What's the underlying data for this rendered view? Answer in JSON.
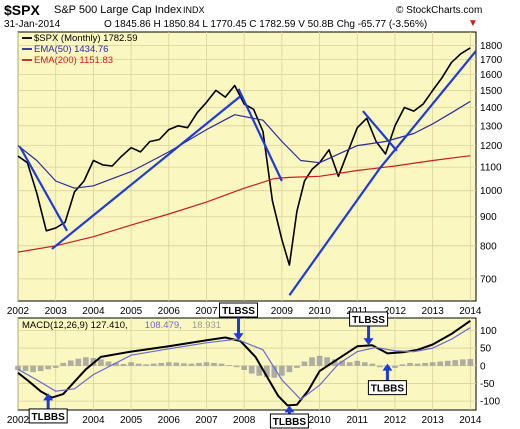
{
  "header": {
    "symbol": "$SPX",
    "name": "S&P 500 Large Cap Index",
    "exchange": "INDX",
    "watermark": "© StockCharts.com",
    "date": "31-Jan-2014",
    "quote": "O 1845.86  H 1850.84  L 1770.45  C 1782.59  V 50.8B  Chg -65.77 (-3.56%)",
    "change_marker": "▼"
  },
  "colors": {
    "plot_bg": "#fbf7c0",
    "grid": "#d9d39a",
    "price": "#000000",
    "ema50": "#2a2a9e",
    "ema200": "#c81e1e",
    "trendline": "#1f3bd6",
    "macd": "#000000",
    "signal": "#6a6ad0",
    "histogram": "#9a9a9a",
    "arrow": "#1f3bd6"
  },
  "chart_data": [
    {
      "type": "line",
      "panel": "price",
      "legend": [
        {
          "name": "$SPX (Monthly) 1782.59",
          "color": "#000000"
        },
        {
          "name": "EMA(50) 1434.76",
          "color": "#2a2a9e"
        },
        {
          "name": "EMA(200) 1151.83",
          "color": "#c81e1e"
        }
      ],
      "scale": "log",
      "ylim": [
        640,
        1900
      ],
      "yticks": [
        700,
        800,
        900,
        1000,
        1100,
        1200,
        1300,
        1400,
        1500,
        1600,
        1700,
        1800
      ],
      "xlim": [
        2002.0,
        2014.15
      ],
      "xticks": [
        "2002",
        "2003",
        "2004",
        "2005",
        "2006",
        "2007",
        "2008",
        "2009",
        "2010",
        "2011",
        "2012",
        "2013",
        "2014"
      ],
      "series": [
        {
          "key": "price",
          "x": [
            2002.0,
            2002.25,
            2002.5,
            2002.75,
            2003.0,
            2003.25,
            2003.5,
            2003.75,
            2004.0,
            2004.25,
            2004.5,
            2004.75,
            2005.0,
            2005.25,
            2005.5,
            2005.75,
            2006.0,
            2006.25,
            2006.5,
            2006.75,
            2007.0,
            2007.25,
            2007.5,
            2007.75,
            2008.0,
            2008.25,
            2008.5,
            2008.75,
            2009.0,
            2009.2,
            2009.4,
            2009.6,
            2009.8,
            2010.0,
            2010.25,
            2010.5,
            2010.75,
            2011.0,
            2011.25,
            2011.5,
            2011.75,
            2012.0,
            2012.25,
            2012.5,
            2012.75,
            2013.0,
            2013.25,
            2013.5,
            2013.75,
            2014.0
          ],
          "values": [
            1150,
            1120,
            990,
            850,
            860,
            880,
            995,
            1040,
            1130,
            1110,
            1105,
            1150,
            1190,
            1170,
            1220,
            1230,
            1280,
            1300,
            1290,
            1370,
            1430,
            1500,
            1460,
            1530,
            1420,
            1390,
            1270,
            960,
            820,
            740,
            920,
            1040,
            1090,
            1120,
            1180,
            1060,
            1170,
            1290,
            1340,
            1220,
            1160,
            1300,
            1400,
            1380,
            1420,
            1500,
            1580,
            1680,
            1740,
            1782
          ]
        },
        {
          "key": "ema50",
          "x": [
            2002.0,
            2002.5,
            2003.0,
            2003.5,
            2004.0,
            2005.0,
            2006.0,
            2007.0,
            2007.75,
            2008.5,
            2009.0,
            2009.5,
            2010.0,
            2011.0,
            2011.75,
            2012.5,
            2013.0,
            2013.5,
            2014.0
          ],
          "values": [
            1200,
            1130,
            1040,
            1010,
            1020,
            1080,
            1170,
            1280,
            1360,
            1330,
            1220,
            1130,
            1120,
            1200,
            1220,
            1260,
            1310,
            1370,
            1435
          ]
        },
        {
          "key": "ema200",
          "x": [
            2002.0,
            2003.0,
            2004.0,
            2005.0,
            2006.0,
            2007.0,
            2008.0,
            2008.8,
            2009.2,
            2010.0,
            2011.0,
            2012.0,
            2013.0,
            2014.0
          ],
          "values": [
            780,
            800,
            830,
            870,
            910,
            955,
            1010,
            1050,
            1055,
            1060,
            1085,
            1105,
            1130,
            1152
          ]
        }
      ],
      "trendlines": [
        {
          "from": [
            2002.05,
            1195
          ],
          "to": [
            2003.3,
            850
          ]
        },
        {
          "from": [
            2002.9,
            790
          ],
          "to": [
            2007.9,
            1465
          ]
        },
        {
          "from": [
            2007.85,
            1510
          ],
          "to": [
            2009.0,
            1040
          ]
        },
        {
          "from": [
            2009.2,
            655
          ],
          "to": [
            2011.6,
            1095
          ]
        },
        {
          "from": [
            2011.6,
            1095
          ],
          "to": [
            2014.15,
            1760
          ]
        },
        {
          "from": [
            2011.15,
            1380
          ],
          "to": [
            2012.05,
            1175
          ]
        }
      ]
    },
    {
      "type": "line",
      "panel": "macd",
      "legend": [
        {
          "name": "MACD(12,26,9) 127.410,",
          "color": "#000000"
        },
        {
          "name": "108.479,",
          "color": "#6a6ad0"
        },
        {
          "name": "18.931",
          "color": "#9a9a9a"
        }
      ],
      "ylim": [
        -125,
        135
      ],
      "yticks": [
        -100,
        -50,
        0,
        50,
        100
      ],
      "xlim": [
        2002.0,
        2014.15
      ],
      "xticks": [
        "2002",
        "2003",
        "2004",
        "2005",
        "2006",
        "2007",
        "2008",
        "2009",
        "2010",
        "2011",
        "2012",
        "2013",
        "2014"
      ],
      "series": [
        {
          "key": "macd",
          "x": [
            2002.0,
            2002.3,
            2002.6,
            2002.9,
            2003.2,
            2003.5,
            2003.8,
            2004.2,
            2005.0,
            2006.0,
            2007.0,
            2007.5,
            2007.9,
            2008.3,
            2008.6,
            2008.9,
            2009.15,
            2009.4,
            2009.7,
            2010.0,
            2010.5,
            2011.0,
            2011.4,
            2011.8,
            2012.2,
            2012.6,
            2013.0,
            2013.5,
            2014.0
          ],
          "values": [
            -20,
            -45,
            -72,
            -90,
            -80,
            -45,
            -10,
            25,
            40,
            55,
            72,
            80,
            70,
            25,
            -30,
            -85,
            -112,
            -110,
            -70,
            -15,
            20,
            55,
            58,
            35,
            38,
            45,
            60,
            90,
            127
          ]
        },
        {
          "key": "signal",
          "x": [
            2002.0,
            2002.5,
            2003.0,
            2003.5,
            2004.0,
            2005.0,
            2006.0,
            2007.0,
            2007.8,
            2008.5,
            2009.0,
            2009.5,
            2010.0,
            2010.5,
            2011.0,
            2011.5,
            2012.0,
            2012.5,
            2013.0,
            2013.5,
            2014.0
          ],
          "values": [
            -10,
            -40,
            -72,
            -65,
            -25,
            30,
            48,
            65,
            75,
            45,
            -40,
            -95,
            -55,
            5,
            40,
            52,
            42,
            40,
            50,
            75,
            108
          ]
        }
      ],
      "histogram": {
        "x": [
          2002.0,
          2002.2,
          2002.4,
          2002.6,
          2002.8,
          2003.0,
          2003.2,
          2003.4,
          2003.6,
          2003.8,
          2004.0,
          2004.2,
          2004.4,
          2004.6,
          2004.8,
          2005.0,
          2005.2,
          2005.4,
          2005.6,
          2005.8,
          2006.0,
          2006.2,
          2006.4,
          2006.6,
          2006.8,
          2007.0,
          2007.2,
          2007.4,
          2007.6,
          2007.8,
          2008.0,
          2008.2,
          2008.4,
          2008.6,
          2008.8,
          2009.0,
          2009.2,
          2009.4,
          2009.6,
          2009.8,
          2010.0,
          2010.2,
          2010.4,
          2010.6,
          2010.8,
          2011.0,
          2011.2,
          2011.4,
          2011.6,
          2011.8,
          2012.0,
          2012.2,
          2012.4,
          2012.6,
          2012.8,
          2013.0,
          2013.2,
          2013.4,
          2013.6,
          2013.8,
          2014.0
        ],
        "values": [
          -12,
          -15,
          -18,
          -15,
          -10,
          -6,
          8,
          15,
          20,
          24,
          22,
          18,
          12,
          8,
          5,
          10,
          6,
          4,
          6,
          8,
          10,
          9,
          7,
          6,
          8,
          10,
          8,
          6,
          2,
          -4,
          -12,
          -22,
          -28,
          -32,
          -34,
          -28,
          -18,
          -6,
          12,
          24,
          28,
          24,
          18,
          14,
          10,
          14,
          10,
          6,
          -4,
          -10,
          -6,
          4,
          8,
          6,
          8,
          10,
          12,
          14,
          16,
          18,
          19
        ]
      },
      "annotations": [
        {
          "text": "TLBBS",
          "x": 2002.8
        },
        {
          "text": "TLBSS",
          "x": 2007.85
        },
        {
          "text": "TLBBS",
          "x": 2009.2
        },
        {
          "text": "TLBSS",
          "x": 2011.3
        },
        {
          "text": "TLBBS",
          "x": 2011.8
        }
      ]
    }
  ]
}
